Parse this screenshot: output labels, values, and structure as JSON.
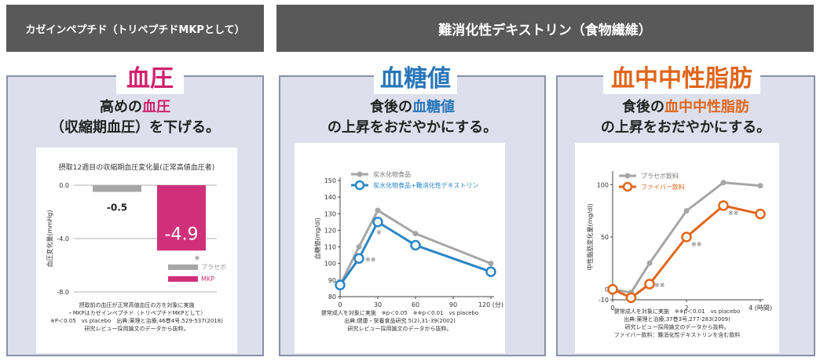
{
  "headers": {
    "left": "カゼインペプチド（トリペプチドMKPとして）",
    "right": "難消化性デキストリン（食物繊維）"
  },
  "panels": [
    {
      "title": "血圧",
      "subtitle_line1_pre": "高めの",
      "subtitle_line1_accent": "血圧",
      "subtitle_line1_post": "",
      "subtitle_line2": "（収縮期血圧）を下げる。",
      "notes": [
        "摂取前の血圧が正常高値血圧の方を対象に実施",
        "・MKPはカゼインペプチド（トリペプチドMKPとして）",
        "※P＜0.05　vs placebo　出典:薬理と治療,46巻4号,529-537(2018)",
        "研究レビュー採用論文のデータから抜粋。"
      ]
    },
    {
      "title": "血糖値",
      "subtitle_line1_pre": "食後の",
      "subtitle_line1_accent": "血糖値",
      "subtitle_line1_post": "",
      "subtitle_line2": "の上昇をおだやかにする。",
      "notes": [
        "健常成人を対象に実施　※p＜0.05　※※p＜0.01　vs placebo",
        "出典:健康・栄養食品研究 5(2),31-39(2002)",
        "研究レビュー採用論文のデータから抜粋。"
      ]
    },
    {
      "title": "血中中性脂肪",
      "subtitle_line1_pre": "食後の",
      "subtitle_line1_accent": "血中中性脂肪",
      "subtitle_line1_post": "",
      "subtitle_line2": "の上昇をおだやかにする。",
      "notes": [
        "健常成人を対象に実施　※※p＜0.01　vs placebo",
        "出典:薬理と治療,37巻3号,277-283(2009)",
        "研究レビュー採用論文のデータから抜粋。",
        "ファイバー飲料：難消化性デキストリンを含む飲料"
      ]
    }
  ],
  "chart_data": [
    {
      "type": "bar",
      "title": "摂取12週目の収縮期血圧変化量(正常高値血圧者)",
      "ylabel": "血圧変化量(mmHg)",
      "ylim": [
        -8.0,
        0.0
      ],
      "yticks": [
        "0.0",
        "-4.0",
        "-8.0"
      ],
      "categories": [
        "プラセボ",
        "MKP"
      ],
      "values": [
        -0.5,
        -4.9
      ],
      "value_labels": [
        "-0.5",
        "-4.9"
      ],
      "colors": [
        "#a6a6a6",
        "#d0307a"
      ],
      "annotations": [
        "※"
      ],
      "legend": [
        "プラセボ",
        "MKP"
      ],
      "legend_position": "bottom-right"
    },
    {
      "type": "line",
      "ylabel": "血糖値(mg/dl)",
      "x": [
        0,
        15,
        30,
        60,
        120
      ],
      "xticks": [
        "0",
        "30",
        "60",
        "90",
        "120 (分)"
      ],
      "ylim": [
        80,
        150
      ],
      "yticks": [
        "80",
        "90",
        "100",
        "110",
        "120",
        "130",
        "140",
        "150"
      ],
      "series": [
        {
          "name": "炭水化物食品",
          "values": [
            87,
            110,
            132,
            118,
            100
          ],
          "color": "#a6a6a6"
        },
        {
          "name": "炭水化物食品+難消化性デキストリン",
          "values": [
            87,
            103,
            125,
            111,
            95
          ],
          "color": "#2b86c5"
        }
      ],
      "annotations": [
        "※※",
        "※"
      ],
      "legend_position": "top"
    },
    {
      "type": "line",
      "ylabel": "中性脂肪変化量(mg/dl)",
      "x": [
        0,
        0.5,
        1,
        2,
        3,
        4
      ],
      "xticks": [
        "0",
        "2",
        "4 (時間)"
      ],
      "ylim": [
        -10,
        110
      ],
      "yticks": [
        "-10",
        "0",
        "50",
        "100"
      ],
      "series": [
        {
          "name": "プラセボ飲料",
          "values": [
            0,
            -3,
            25,
            75,
            102,
            99
          ],
          "color": "#a6a6a6"
        },
        {
          "name": "ファイバー飲料",
          "values": [
            0,
            -8,
            5,
            50,
            80,
            72
          ],
          "color": "#e0661b"
        }
      ],
      "annotations": [
        "※※",
        "※※",
        "※※"
      ],
      "legend_position": "top-left"
    }
  ]
}
